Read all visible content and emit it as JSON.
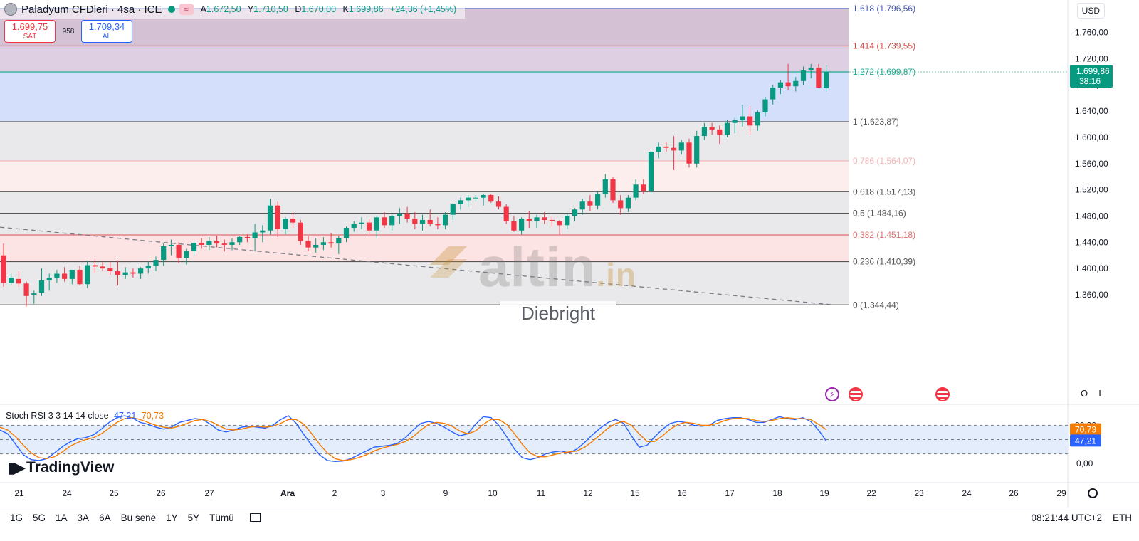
{
  "header": {
    "symbol": "Paladyum CFDleri · 4sa · ICE",
    "wave_icon": "wave-icon",
    "o_label": "A",
    "o_value": "1.672,50",
    "h_label": "Y",
    "h_value": "1.710,50",
    "l_label": "D",
    "l_value": "1.670,00",
    "c_label": "K",
    "c_value": "1.699,86",
    "change": "+24,36 (+1,45%)"
  },
  "trade": {
    "sell_price": "1.699,75",
    "sell_label": "SAT",
    "spread": "958",
    "buy_price": "1.709,34",
    "buy_label": "AL"
  },
  "currency": "USD",
  "price_axis": {
    "ticks": [
      "1.760,00",
      "1.720,00",
      "1.680,00",
      "1.640,00",
      "1.600,00",
      "1.560,00",
      "1.520,00",
      "1.480,00",
      "1.440,00",
      "1.400,00",
      "1.360,00"
    ],
    "last_price": "1.699,86",
    "countdown": "38:16"
  },
  "time_axis": [
    "21",
    "24",
    "25",
    "26",
    "27",
    "Ara",
    "2",
    "3",
    "9",
    "10",
    "11",
    "12",
    "15",
    "16",
    "17",
    "18",
    "19",
    "22",
    "23",
    "24",
    "26",
    "29"
  ],
  "watermark": {
    "brand": "altin",
    "suffix": ".in",
    "author": "Diebright"
  },
  "scale_buttons": {
    "ohlc": "O",
    "log": "L"
  },
  "rsi": {
    "label": "Stoch RSI 3 3 14 14 close",
    "k_value": "47,21",
    "d_value": "70,73",
    "ticks": [
      "80,00",
      "0,00"
    ]
  },
  "brand": "TradingView",
  "bottom_bar": {
    "periods": [
      "1G",
      "5G",
      "1A",
      "3A",
      "6A",
      "Bu sene",
      "1Y",
      "5Y",
      "Tümü"
    ],
    "time": "08:21:44 UTC+2",
    "session": "ETH"
  },
  "colors": {
    "up": "#089981",
    "down": "#f23645",
    "k_line": "#2962ff",
    "d_line": "#f57c00"
  },
  "chart_data": [
    {
      "type": "candlestick",
      "title": "Paladyum CFDleri · 4sa · ICE",
      "ylim": [
        1330,
        1800
      ],
      "y_unit": "USD",
      "fibonacci": [
        {
          "level": "0",
          "price": 1344.44,
          "label": "0 (1.344,44)"
        },
        {
          "level": "0.236",
          "price": 1410.39,
          "label": "0,236 (1.410,39)"
        },
        {
          "level": "0.382",
          "price": 1451.18,
          "label": "0,382 (1.451,18)"
        },
        {
          "level": "0.5",
          "price": 1484.16,
          "label": "0,5 (1.484,16)"
        },
        {
          "level": "0.618",
          "price": 1517.13,
          "label": "0,618 (1.517,13)"
        },
        {
          "level": "0.786",
          "price": 1564.07,
          "label": "0,786 (1.564,07)"
        },
        {
          "level": "1",
          "price": 1623.87,
          "label": "1 (1.623,87)"
        },
        {
          "level": "1.272",
          "price": 1699.87,
          "label": "1,272 (1.699,87)"
        },
        {
          "level": "1.414",
          "price": 1739.55,
          "label": "1,414 (1.739,55)"
        },
        {
          "level": "1.618",
          "price": 1796.56,
          "label": "1,618 (1.796,56)"
        }
      ],
      "candles": [
        [
          1420,
          1438,
          1372,
          1378
        ],
        [
          1378,
          1392,
          1375,
          1386
        ],
        [
          1384,
          1396,
          1372,
          1377
        ],
        [
          1377,
          1380,
          1342,
          1358
        ],
        [
          1360,
          1366,
          1346,
          1362
        ],
        [
          1363,
          1400,
          1358,
          1382
        ],
        [
          1382,
          1392,
          1366,
          1386
        ],
        [
          1385,
          1398,
          1378,
          1392
        ],
        [
          1392,
          1402,
          1380,
          1384
        ],
        [
          1384,
          1398,
          1376,
          1398
        ],
        [
          1398,
          1404,
          1374,
          1376
        ],
        [
          1376,
          1412,
          1370,
          1405
        ],
        [
          1405,
          1414,
          1393,
          1403
        ],
        [
          1403,
          1410,
          1396,
          1400
        ],
        [
          1400,
          1410,
          1390,
          1396
        ],
        [
          1396,
          1412,
          1374,
          1390
        ],
        [
          1390,
          1402,
          1384,
          1394
        ],
        [
          1394,
          1400,
          1386,
          1392
        ],
        [
          1392,
          1402,
          1384,
          1400
        ],
        [
          1400,
          1410,
          1392,
          1404
        ],
        [
          1404,
          1418,
          1396,
          1413
        ],
        [
          1413,
          1438,
          1404,
          1434
        ],
        [
          1434,
          1444,
          1420,
          1436
        ],
        [
          1436,
          1440,
          1408,
          1416
        ],
        [
          1416,
          1430,
          1406,
          1427
        ],
        [
          1427,
          1442,
          1420,
          1439
        ],
        [
          1439,
          1446,
          1430,
          1436
        ],
        [
          1436,
          1448,
          1428,
          1442
        ],
        [
          1442,
          1450,
          1432,
          1438
        ],
        [
          1438,
          1444,
          1426,
          1436
        ],
        [
          1436,
          1446,
          1428,
          1440
        ],
        [
          1440,
          1450,
          1436,
          1448
        ],
        [
          1448,
          1452,
          1440,
          1446
        ],
        [
          1446,
          1468,
          1426,
          1455
        ],
        [
          1455,
          1466,
          1440,
          1458
        ],
        [
          1458,
          1506,
          1452,
          1496
        ],
        [
          1496,
          1502,
          1448,
          1460
        ],
        [
          1460,
          1478,
          1452,
          1476
        ],
        [
          1476,
          1486,
          1462,
          1470
        ],
        [
          1470,
          1474,
          1436,
          1442
        ],
        [
          1442,
          1450,
          1426,
          1432
        ],
        [
          1432,
          1446,
          1424,
          1436
        ],
        [
          1436,
          1448,
          1428,
          1440
        ],
        [
          1440,
          1454,
          1432,
          1438
        ],
        [
          1438,
          1450,
          1422,
          1446
        ],
        [
          1446,
          1464,
          1440,
          1462
        ],
        [
          1462,
          1472,
          1456,
          1468
        ],
        [
          1468,
          1478,
          1460,
          1470
        ],
        [
          1470,
          1476,
          1452,
          1458
        ],
        [
          1458,
          1480,
          1446,
          1478
        ],
        [
          1478,
          1486,
          1462,
          1466
        ],
        [
          1466,
          1482,
          1458,
          1480
        ],
        [
          1480,
          1492,
          1468,
          1484
        ],
        [
          1484,
          1494,
          1470,
          1476
        ],
        [
          1476,
          1486,
          1460,
          1468
        ],
        [
          1468,
          1482,
          1458,
          1474
        ],
        [
          1474,
          1490,
          1464,
          1468
        ],
        [
          1468,
          1478,
          1460,
          1466
        ],
        [
          1466,
          1486,
          1460,
          1482
        ],
        [
          1482,
          1500,
          1474,
          1498
        ],
        [
          1498,
          1508,
          1490,
          1504
        ],
        [
          1504,
          1512,
          1494,
          1508
        ],
        [
          1508,
          1512,
          1502,
          1508
        ],
        [
          1508,
          1514,
          1496,
          1512
        ],
        [
          1512,
          1514,
          1500,
          1502
        ],
        [
          1502,
          1510,
          1490,
          1494
        ],
        [
          1494,
          1498,
          1468,
          1472
        ],
        [
          1472,
          1480,
          1456,
          1458
        ],
        [
          1458,
          1478,
          1452,
          1476
        ],
        [
          1476,
          1488,
          1462,
          1472
        ],
        [
          1472,
          1482,
          1462,
          1478
        ],
        [
          1478,
          1486,
          1468,
          1474
        ],
        [
          1474,
          1480,
          1464,
          1472
        ],
        [
          1472,
          1474,
          1452,
          1466
        ],
        [
          1466,
          1484,
          1460,
          1480
        ],
        [
          1480,
          1492,
          1472,
          1490
        ],
        [
          1490,
          1506,
          1482,
          1502
        ],
        [
          1502,
          1512,
          1488,
          1496
        ],
        [
          1496,
          1518,
          1490,
          1514
        ],
        [
          1514,
          1544,
          1508,
          1536
        ],
        [
          1536,
          1540,
          1500,
          1504
        ],
        [
          1504,
          1512,
          1482,
          1492
        ],
        [
          1492,
          1512,
          1486,
          1508
        ],
        [
          1508,
          1536,
          1504,
          1528
        ],
        [
          1528,
          1536,
          1514,
          1518
        ],
        [
          1518,
          1580,
          1514,
          1578
        ],
        [
          1578,
          1592,
          1568,
          1586
        ],
        [
          1586,
          1592,
          1578,
          1584
        ],
        [
          1584,
          1602,
          1550,
          1580
        ],
        [
          1580,
          1596,
          1574,
          1592
        ],
        [
          1592,
          1598,
          1554,
          1560
        ],
        [
          1560,
          1610,
          1554,
          1602
        ],
        [
          1602,
          1622,
          1596,
          1616
        ],
        [
          1616,
          1622,
          1604,
          1612
        ],
        [
          1612,
          1618,
          1590,
          1604
        ],
        [
          1604,
          1626,
          1600,
          1622
        ],
        [
          1622,
          1630,
          1606,
          1626
        ],
        [
          1626,
          1650,
          1616,
          1632
        ],
        [
          1632,
          1648,
          1604,
          1618
        ],
        [
          1618,
          1642,
          1610,
          1638
        ],
        [
          1638,
          1662,
          1632,
          1658
        ],
        [
          1658,
          1680,
          1650,
          1676
        ],
        [
          1676,
          1688,
          1666,
          1684
        ],
        [
          1684,
          1712,
          1672,
          1678
        ],
        [
          1678,
          1692,
          1670,
          1686
        ],
        [
          1686,
          1708,
          1680,
          1702
        ],
        [
          1702,
          1712,
          1690,
          1706
        ],
        [
          1706,
          1712,
          1676,
          1676
        ],
        [
          1675,
          1710,
          1670,
          1700
        ]
      ],
      "trendline": {
        "from": [
          0,
          1463
        ],
        "to": [
          109,
          1344.44
        ]
      }
    },
    {
      "type": "line",
      "title": "Stoch RSI 3 3 14 14 close",
      "ylim": [
        0,
        100
      ],
      "reference_lines": [
        80,
        50,
        20
      ],
      "series": [
        {
          "name": "K",
          "last": 47.21,
          "values": [
            70,
            62,
            40,
            18,
            8,
            6,
            10,
            22,
            35,
            45,
            52,
            54,
            60,
            72,
            86,
            96,
            100,
            95,
            86,
            82,
            76,
            72,
            76,
            86,
            90,
            94,
            92,
            82,
            70,
            66,
            70,
            76,
            78,
            76,
            74,
            80,
            92,
            100,
            84,
            60,
            38,
            18,
            6,
            4,
            5,
            10,
            18,
            26,
            34,
            36,
            38,
            42,
            54,
            70,
            84,
            88,
            84,
            76,
            66,
            58,
            62,
            82,
            98,
            96,
            80,
            56,
            30,
            12,
            8,
            12,
            20,
            24,
            26,
            22,
            30,
            44,
            60,
            74,
            86,
            92,
            84,
            58,
            34,
            38,
            56,
            72,
            84,
            88,
            86,
            80,
            78,
            80,
            90,
            94,
            96,
            96,
            92,
            86,
            86,
            92,
            98,
            94,
            92,
            96,
            88,
            70,
            47
          ]
        },
        {
          "name": "D",
          "last": 70.73,
          "values": [
            76,
            70,
            56,
            38,
            22,
            12,
            10,
            14,
            24,
            36,
            44,
            50,
            54,
            62,
            74,
            86,
            94,
            96,
            92,
            86,
            80,
            76,
            74,
            78,
            84,
            90,
            92,
            88,
            80,
            72,
            70,
            72,
            76,
            78,
            76,
            78,
            84,
            92,
            92,
            82,
            62,
            40,
            22,
            10,
            6,
            8,
            12,
            18,
            26,
            32,
            36,
            40,
            46,
            56,
            70,
            82,
            86,
            84,
            78,
            68,
            62,
            68,
            82,
            92,
            92,
            82,
            62,
            40,
            22,
            14,
            14,
            18,
            22,
            24,
            26,
            34,
            46,
            60,
            74,
            84,
            88,
            80,
            62,
            46,
            46,
            58,
            72,
            82,
            86,
            84,
            80,
            80,
            84,
            90,
            94,
            95,
            94,
            90,
            88,
            90,
            94,
            96,
            94,
            94,
            92,
            82,
            70.73
          ]
        }
      ]
    }
  ]
}
